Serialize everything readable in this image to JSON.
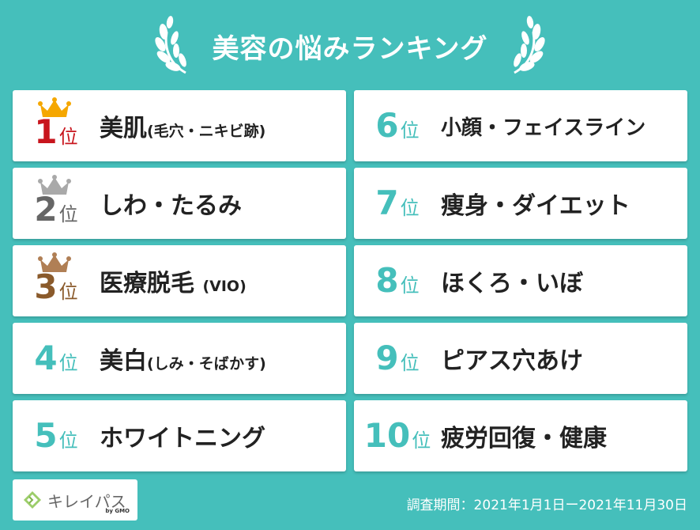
{
  "title": "美容の悩みランキング",
  "colors": {
    "background": "#45bfbb",
    "gold": "#f5a700",
    "silver": "#a9a9a9",
    "bronze": "#b07f55",
    "rank_teal": "#45bfbb",
    "rank1": "#c8151d",
    "rank2": "#666666",
    "rank3": "#8a5a2b"
  },
  "rankings": [
    {
      "num": "1",
      "suffix": "位",
      "label": "美肌",
      "sub": "(毛穴・ニキビ跡)",
      "crown": "gold-crown-icon"
    },
    {
      "num": "2",
      "suffix": "位",
      "label": "しわ・たるみ",
      "sub": "",
      "crown": "silver-crown-icon"
    },
    {
      "num": "3",
      "suffix": "位",
      "label": "医療脱毛",
      "sub": "(VIO)",
      "crown": "bronze-crown-icon"
    },
    {
      "num": "4",
      "suffix": "位",
      "label": "美白",
      "sub": "(しみ・そばかす)"
    },
    {
      "num": "5",
      "suffix": "位",
      "label": "ホワイトニング",
      "sub": ""
    },
    {
      "num": "6",
      "suffix": "位",
      "label": "小顔・フェイスライン",
      "sub": ""
    },
    {
      "num": "7",
      "suffix": "位",
      "label": "痩身・ダイエット",
      "sub": ""
    },
    {
      "num": "8",
      "suffix": "位",
      "label": "ほくろ・いぼ",
      "sub": ""
    },
    {
      "num": "9",
      "suffix": "位",
      "label": "ピアス穴あけ",
      "sub": ""
    },
    {
      "num": "10",
      "suffix": "位",
      "label": "疲労回復・健康",
      "sub": ""
    }
  ],
  "logo": {
    "text": "キレイパス",
    "by": "by GMO"
  },
  "period": "調査期間：2021年1月1日ー2021年11月30日"
}
